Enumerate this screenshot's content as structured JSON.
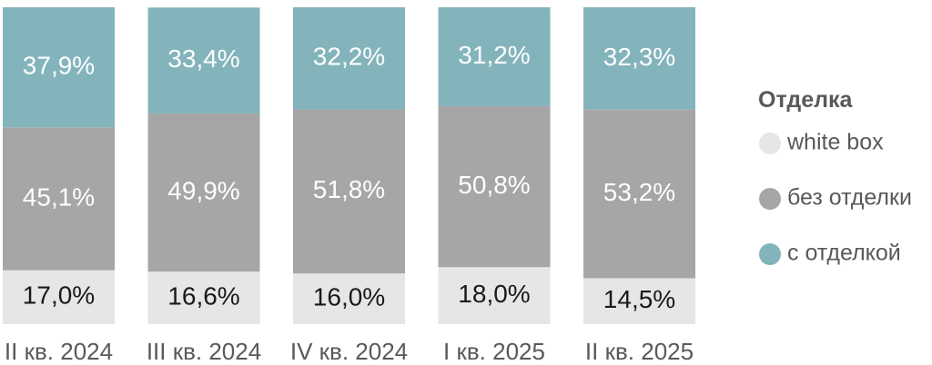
{
  "chart_data": {
    "type": "bar",
    "stacked": true,
    "percent": true,
    "categories": [
      "II кв. 2024",
      "III кв. 2024",
      "IV кв. 2024",
      "I кв. 2025",
      "II кв. 2025"
    ],
    "series": [
      {
        "name": "white box",
        "color": "#e6e6e6",
        "label_color": "#1a1a1a",
        "values": [
          17.0,
          16.6,
          16.0,
          18.0,
          14.5
        ],
        "labels": [
          "17,0%",
          "16,6%",
          "16,0%",
          "18,0%",
          "14,5%"
        ]
      },
      {
        "name": "без отделки",
        "color": "#a6a6a6",
        "label_color": "#ffffff",
        "values": [
          45.1,
          49.9,
          51.8,
          50.8,
          53.2
        ],
        "labels": [
          "45,1%",
          "49,9%",
          "51,8%",
          "50,8%",
          "53,2%"
        ]
      },
      {
        "name": "с отделкой",
        "color": "#84b4bb",
        "label_color": "#ffffff",
        "values": [
          37.9,
          33.4,
          32.2,
          31.2,
          32.3
        ],
        "labels": [
          "37,9%",
          "33,4%",
          "32,2%",
          "31,2%",
          "32,3%"
        ]
      }
    ],
    "ylim": [
      0,
      100
    ],
    "grid": false,
    "legend": {
      "title": "Отделка",
      "position": "right"
    }
  }
}
